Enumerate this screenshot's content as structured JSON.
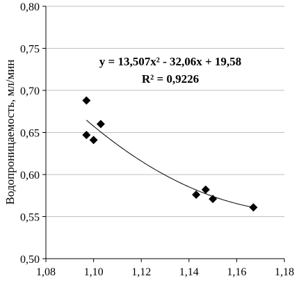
{
  "chart_data": {
    "type": "scatter",
    "title": "",
    "xlabel": "",
    "ylabel": "Водопроницаемость, мл/мин",
    "xlim": [
      1.08,
      1.18
    ],
    "ylim": [
      0.5,
      0.8
    ],
    "x_ticks": [
      "1,08",
      "1,10",
      "1,12",
      "1,14",
      "1,16",
      "1,18"
    ],
    "y_ticks": [
      "0,50",
      "0,55",
      "0,60",
      "0,65",
      "0,70",
      "0,75",
      "0,80"
    ],
    "grid": "horizontal",
    "legend": "none",
    "marker": "diamond",
    "marker_color": "#000000",
    "series": [
      {
        "points": [
          {
            "x": 1.097,
            "y": 0.688
          },
          {
            "x": 1.097,
            "y": 0.647
          },
          {
            "x": 1.1,
            "y": 0.641
          },
          {
            "x": 1.103,
            "y": 0.66
          },
          {
            "x": 1.143,
            "y": 0.576
          },
          {
            "x": 1.147,
            "y": 0.582
          },
          {
            "x": 1.15,
            "y": 0.571
          },
          {
            "x": 1.167,
            "y": 0.561
          }
        ]
      }
    ],
    "trendline": {
      "type": "polynomial",
      "coefficients": [
        13.507,
        -32.06,
        19.58
      ],
      "x_range": [
        1.097,
        1.167
      ]
    },
    "annotations": {
      "equation": "y = 13,507x² - 32,06x + 19,58",
      "r_squared": "R² = 0,9226"
    }
  }
}
